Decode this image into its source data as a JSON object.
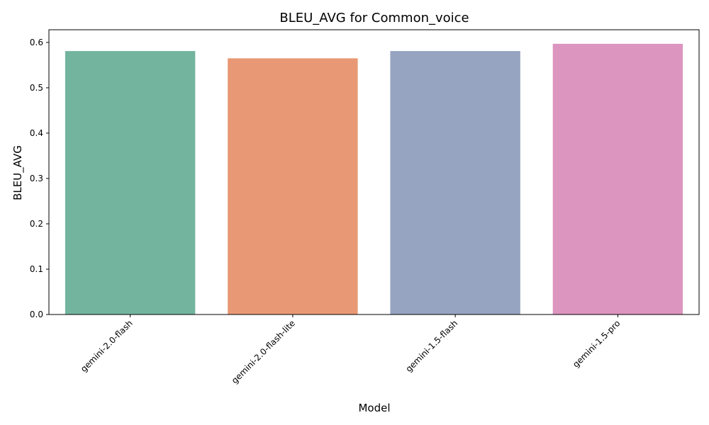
{
  "chart_data": {
    "type": "bar",
    "title": "BLEU_AVG for Common_voice",
    "xlabel": "Model",
    "ylabel": "BLEU_AVG",
    "categories": [
      "gemini-2.0-flash",
      "gemini-2.0-flash-lite",
      "gemini-1.5-flash",
      "gemini-1.5-pro"
    ],
    "values": [
      0.581,
      0.565,
      0.581,
      0.597
    ],
    "colors": [
      "#73b49f",
      "#e99875",
      "#96a4c1",
      "#dc95bf"
    ],
    "ylim": [
      0,
      0.628
    ],
    "yticks": [
      0.0,
      0.1,
      0.2,
      0.3,
      0.4,
      0.5,
      0.6
    ],
    "ytick_labels": [
      "0.0",
      "0.1",
      "0.2",
      "0.3",
      "0.4",
      "0.5",
      "0.6"
    ],
    "grid": false,
    "legend": "none"
  }
}
